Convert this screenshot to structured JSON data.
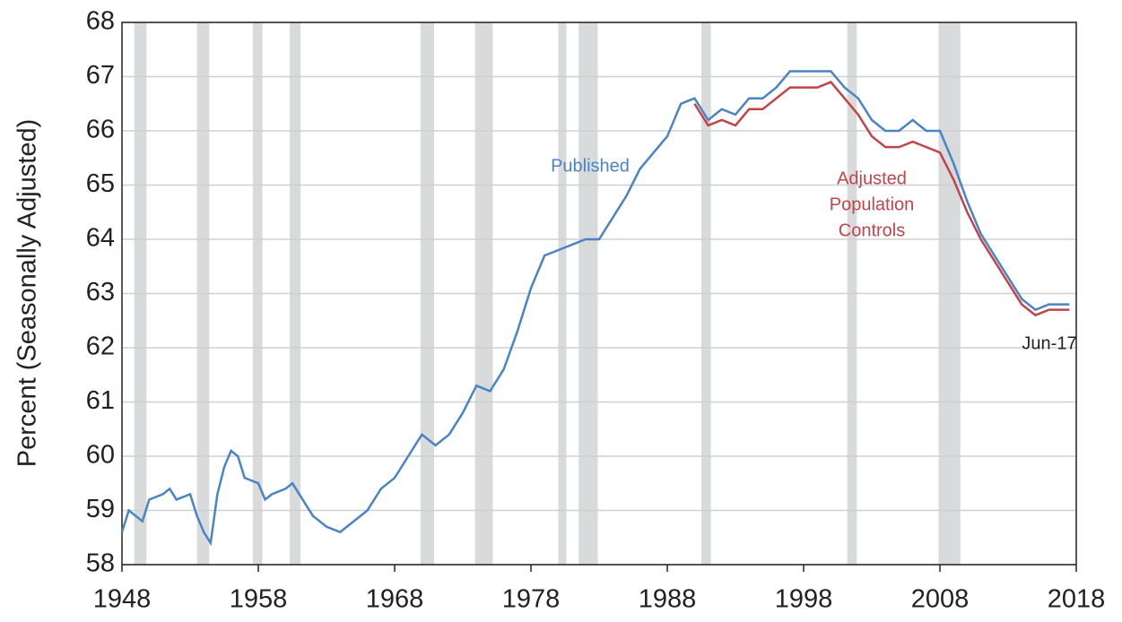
{
  "chart_data": {
    "type": "line",
    "y_label": "Percent (Seasonally Adjusted)",
    "xlim": [
      1948,
      2018
    ],
    "ylim": [
      58,
      68
    ],
    "xticks": [
      1948,
      1958,
      1968,
      1978,
      1988,
      1998,
      2008,
      2018
    ],
    "yticks": [
      58,
      59,
      60,
      61,
      62,
      63,
      64,
      65,
      66,
      67,
      68
    ],
    "grid": true,
    "recessions": [
      [
        1948.9,
        1949.8
      ],
      [
        1953.5,
        1954.4
      ],
      [
        1957.6,
        1958.3
      ],
      [
        1960.3,
        1961.1
      ],
      [
        1969.9,
        1970.9
      ],
      [
        1973.9,
        1975.2
      ],
      [
        1980.0,
        1980.6
      ],
      [
        1981.5,
        1982.9
      ],
      [
        1990.5,
        1991.2
      ],
      [
        2001.2,
        2001.9
      ],
      [
        2007.9,
        2009.5
      ]
    ],
    "recession_color": "#d9dadb",
    "series": [
      {
        "name": "Published",
        "color": "#4a84c4",
        "x": [
          1948,
          1948.5,
          1949,
          1949.5,
          1950,
          1951,
          1951.5,
          1952,
          1953,
          1953.5,
          1954,
          1954.5,
          1955,
          1955.5,
          1956,
          1956.5,
          1957,
          1958,
          1958.5,
          1959,
          1960,
          1960.5,
          1961,
          1962,
          1963,
          1964,
          1965,
          1966,
          1967,
          1968,
          1969,
          1970,
          1971,
          1972,
          1973,
          1974,
          1975,
          1976,
          1977,
          1978,
          1979,
          1980,
          1981,
          1982,
          1983,
          1984,
          1985,
          1986,
          1987,
          1988,
          1989,
          1990,
          1991,
          1992,
          1993,
          1994,
          1995,
          1996,
          1997,
          1998,
          1999,
          2000,
          2001,
          2002,
          2003,
          2004,
          2005,
          2006,
          2007,
          2008,
          2009,
          2010,
          2011,
          2012,
          2013,
          2014,
          2015,
          2016,
          2017.5
        ],
        "values": [
          58.6,
          59.0,
          58.9,
          58.8,
          59.2,
          59.3,
          59.4,
          59.2,
          59.3,
          58.9,
          58.6,
          58.4,
          59.3,
          59.8,
          60.1,
          60.0,
          59.6,
          59.5,
          59.2,
          59.3,
          59.4,
          59.5,
          59.3,
          58.9,
          58.7,
          58.6,
          58.8,
          59.0,
          59.4,
          59.6,
          60.0,
          60.4,
          60.2,
          60.4,
          60.8,
          61.3,
          61.2,
          61.6,
          62.3,
          63.1,
          63.7,
          63.8,
          63.9,
          64.0,
          64.0,
          64.4,
          64.8,
          65.3,
          65.6,
          65.9,
          66.5,
          66.6,
          66.2,
          66.4,
          66.3,
          66.6,
          66.6,
          66.8,
          67.1,
          67.1,
          67.1,
          67.1,
          66.8,
          66.6,
          66.2,
          66.0,
          66.0,
          66.2,
          66.0,
          66.0,
          65.4,
          64.7,
          64.1,
          63.7,
          63.3,
          62.9,
          62.7,
          62.8,
          62.8
        ]
      },
      {
        "name": "Adjusted Population Controls",
        "color": "#c0444a",
        "x": [
          1990,
          1991,
          1992,
          1993,
          1994,
          1995,
          1996,
          1997,
          1998,
          1999,
          2000,
          2001,
          2002,
          2003,
          2004,
          2005,
          2006,
          2007,
          2008,
          2009,
          2010,
          2011,
          2012,
          2013,
          2014,
          2015,
          2016,
          2017.5
        ],
        "values": [
          66.5,
          66.1,
          66.2,
          66.1,
          66.4,
          66.4,
          66.6,
          66.8,
          66.8,
          66.8,
          66.9,
          66.6,
          66.3,
          65.9,
          65.7,
          65.7,
          65.8,
          65.7,
          65.6,
          65.1,
          64.5,
          64.0,
          63.6,
          63.2,
          62.8,
          62.6,
          62.7,
          62.7
        ]
      }
    ],
    "annotations": {
      "published": "Published",
      "adjusted": [
        "Adjusted",
        "Population",
        "Controls"
      ],
      "end": "Jun-17"
    }
  }
}
